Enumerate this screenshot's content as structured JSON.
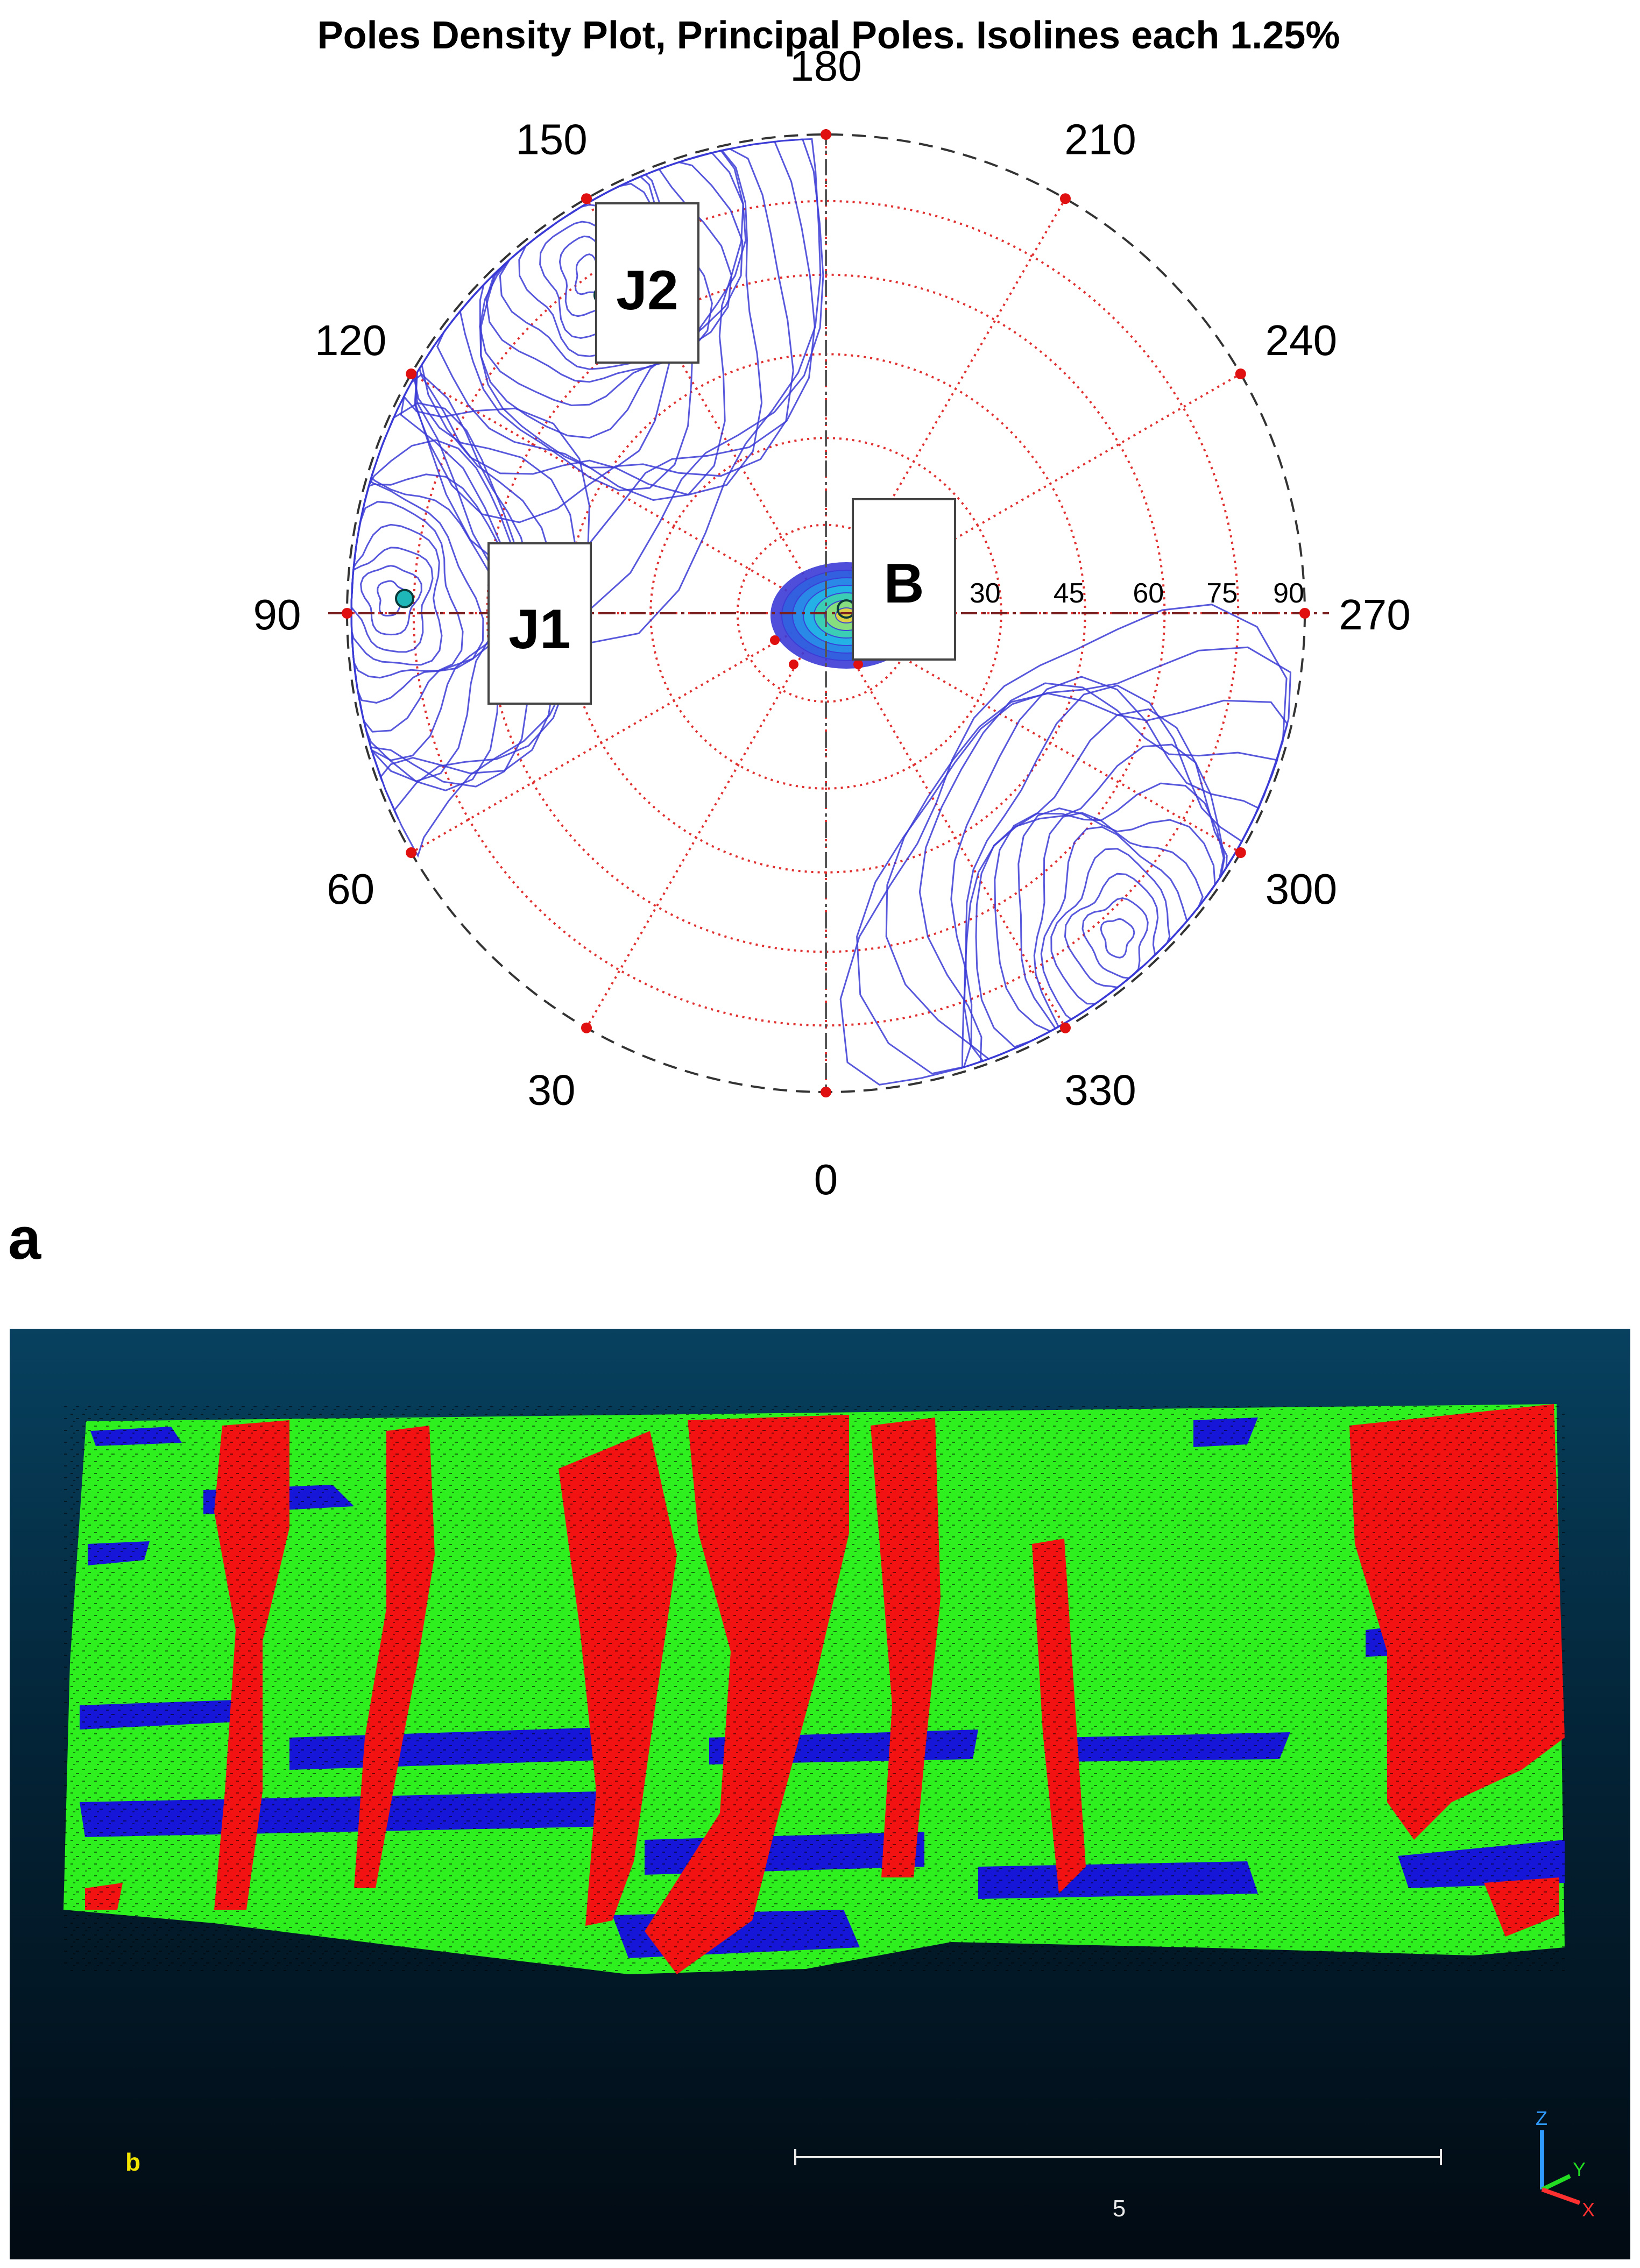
{
  "panel_a": {
    "panel_letter": "a",
    "title": "Poles Density Plot, Principal Poles. Isolines each 1.25%",
    "azimuth_labels": [
      "0",
      "30",
      "60",
      "90",
      "120",
      "150",
      "180",
      "210",
      "240",
      "270",
      "300",
      "330"
    ],
    "dip_labels": [
      "30",
      "45",
      "60",
      "75",
      "90"
    ],
    "pole_labels": {
      "J1": "J1",
      "J2": "J2",
      "B": "B"
    },
    "colors": {
      "isolines": "#3b3bd6",
      "grid": "#e03030",
      "pole_marker": "#1fb8b8",
      "boundary": "#333333"
    }
  },
  "chart_data": {
    "type": "stereonet-density",
    "title": "Poles Density Plot, Principal Poles. Isolines each 1.25%",
    "isoline_interval_percent": 1.25,
    "azimuth_ticks_deg": [
      0,
      30,
      60,
      90,
      120,
      150,
      180,
      210,
      240,
      270,
      300,
      330
    ],
    "dip_rings_deg": [
      30,
      45,
      60,
      75,
      90
    ],
    "principal_poles": [
      {
        "name": "J1",
        "azimuth_deg": 92,
        "dip_deg": 77
      },
      {
        "name": "J2",
        "azimuth_deg": 145,
        "dip_deg": 70
      },
      {
        "name": "B",
        "azimuth_deg": 240,
        "dip_deg": 1
      }
    ],
    "density_concentrations": [
      {
        "azimuth_deg": 145,
        "dip_deg": 75
      },
      {
        "azimuth_deg": 92,
        "dip_deg": 80
      },
      {
        "azimuth_deg": 318,
        "dip_deg": 80
      },
      {
        "azimuth_deg": 270,
        "dip_deg": 3
      }
    ]
  },
  "panel_b": {
    "panel_letter": "b",
    "scale_bar_label": "5",
    "axes": {
      "z": "Z",
      "y": "Y",
      "x": "X"
    },
    "family_colors": {
      "J1": "#ff0000",
      "J2": "#0000ff",
      "B": "#00ff00"
    }
  }
}
